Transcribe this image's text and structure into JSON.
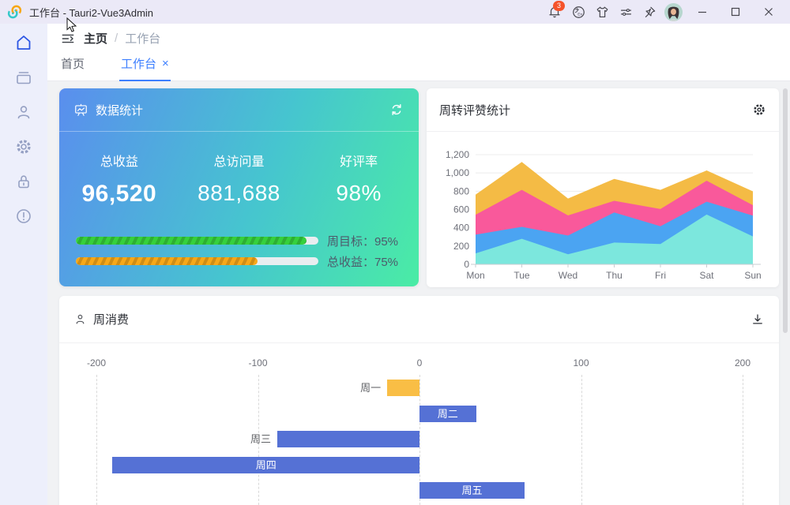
{
  "window": {
    "title": "工作台 - Tauri2-Vue3Admin",
    "notification_badge": "3",
    "titlebar_icons": [
      "bell-icon",
      "translate-icon",
      "theme-shirt-icon",
      "adjust-sliders-icon",
      "pin-icon",
      "avatar",
      "minimize-icon",
      "maximize-icon",
      "close-icon"
    ]
  },
  "sidebar": {
    "items": [
      {
        "icon": "home-icon",
        "active": true
      },
      {
        "icon": "archive-icon",
        "active": false
      },
      {
        "icon": "user-icon",
        "active": false
      },
      {
        "icon": "settings-gear-icon",
        "active": false
      },
      {
        "icon": "lock-icon",
        "active": false
      },
      {
        "icon": "info-icon",
        "active": false
      }
    ]
  },
  "header": {
    "breadcrumb": {
      "root": "主页",
      "separator": "/",
      "current": "工作台"
    }
  },
  "tabs": {
    "items": [
      {
        "label": "首页",
        "active": false
      },
      {
        "label": "工作台",
        "active": true,
        "close_glyph": "×"
      }
    ]
  },
  "stats_card": {
    "title": "数据统计",
    "stats": [
      {
        "label": "总收益",
        "value": "96,520"
      },
      {
        "label": "总访问量",
        "value": "881,688"
      },
      {
        "label": "好评率",
        "value": "98%"
      }
    ],
    "progress": [
      {
        "label": "周目标：95%",
        "percent": 95,
        "bar_color": "#36d03c"
      },
      {
        "label": "总收益：75%",
        "percent": 75,
        "bar_color": "#f7a819"
      }
    ]
  },
  "colors": {
    "accent_blue": "#3d7fff",
    "titlebar_bg": "#ebe9f7",
    "sidebar_bg": "#edeffb",
    "content_bg": "#f1f2f4",
    "badge_red": "#f5532b"
  },
  "chart_data": [
    {
      "type": "area",
      "title": "周转评赞统计",
      "stacked": true,
      "x": [
        "Mon",
        "Tue",
        "Wed",
        "Thu",
        "Fri",
        "Sat",
        "Sun"
      ],
      "series": [
        {
          "name": "layer1-cyan",
          "color": "#7ce7dd",
          "values": [
            120,
            280,
            110,
            238,
            222,
            545,
            305
          ]
        },
        {
          "name": "layer2-blue",
          "color": "#4ba4f2",
          "values": [
            205,
            130,
            205,
            330,
            195,
            140,
            228
          ]
        },
        {
          "name": "layer3-pink",
          "color": "#f9599b",
          "values": [
            218,
            405,
            220,
            127,
            188,
            230,
            114
          ]
        },
        {
          "name": "layer4-yellow",
          "color": "#f4bb45",
          "values": [
            220,
            305,
            185,
            240,
            210,
            112,
            152
          ]
        }
      ],
      "ylim": [
        0,
        1200
      ],
      "yticks": [
        0,
        200,
        400,
        600,
        800,
        1000,
        1200
      ],
      "ytick_labels": [
        "0",
        "200",
        "400",
        "600",
        "800",
        "1,000",
        "1,200"
      ],
      "grid": true,
      "legend": "none"
    },
    {
      "type": "bar",
      "title": "周消费",
      "orientation": "horizontal",
      "categories": [
        "周一",
        "周二",
        "周三",
        "周四",
        "周五"
      ],
      "values": [
        -20,
        35,
        -88,
        -190,
        65
      ],
      "bar_colors": [
        "#f9be45",
        "#5571d5",
        "#5571d5",
        "#5571d5",
        "#5571d5"
      ],
      "label_inside": [
        false,
        true,
        false,
        true,
        true
      ],
      "xticks": [
        -200,
        -100,
        0,
        100,
        200
      ],
      "xtick_labels": [
        "-200",
        "-100",
        "0",
        "100",
        "200"
      ],
      "xlim": [
        -250,
        250
      ],
      "grid": "dashed-vertical"
    }
  ]
}
